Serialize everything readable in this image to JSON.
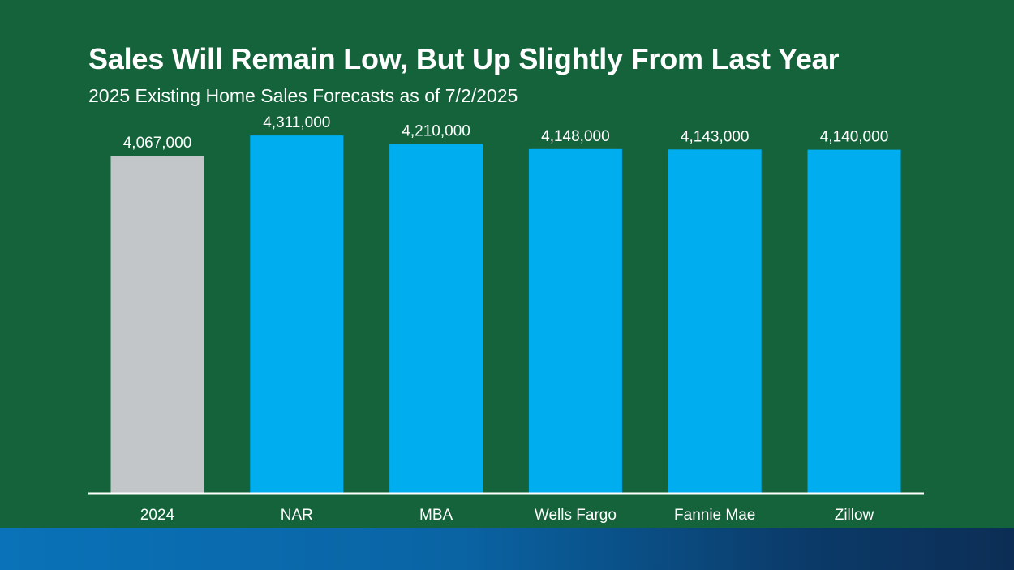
{
  "header": {
    "title": "Sales Will Remain Low, But Up Slightly From Last Year",
    "subtitle": "2025 Existing Home Sales Forecasts as of 7/2/2025"
  },
  "colors": {
    "background": "#15633a",
    "bar_actual": "#c3c6c8",
    "bar_forecast": "#00aeef",
    "text": "#ffffff",
    "axis": "#ffffff",
    "footer_band": "#0a72b8"
  },
  "chart_data": {
    "type": "bar",
    "title": "Sales Will Remain Low, But Up Slightly From Last Year",
    "subtitle": "2025 Existing Home Sales Forecasts as of 7/2/2025",
    "categories": [
      "2024",
      "NAR",
      "MBA",
      "Wells Fargo",
      "Fannie Mae",
      "Zillow"
    ],
    "values": [
      4067000,
      4311000,
      4210000,
      4148000,
      4143000,
      4140000
    ],
    "data_labels": [
      "4,067,000",
      "4,311,000",
      "4,210,000",
      "4,148,000",
      "4,143,000",
      "4,140,000"
    ],
    "bar_colors": [
      "#c3c6c8",
      "#00aeef",
      "#00aeef",
      "#00aeef",
      "#00aeef",
      "#00aeef"
    ],
    "xlabel": "",
    "ylabel": "",
    "ylim": [
      0,
      4400000
    ],
    "grid": false,
    "legend": false
  }
}
